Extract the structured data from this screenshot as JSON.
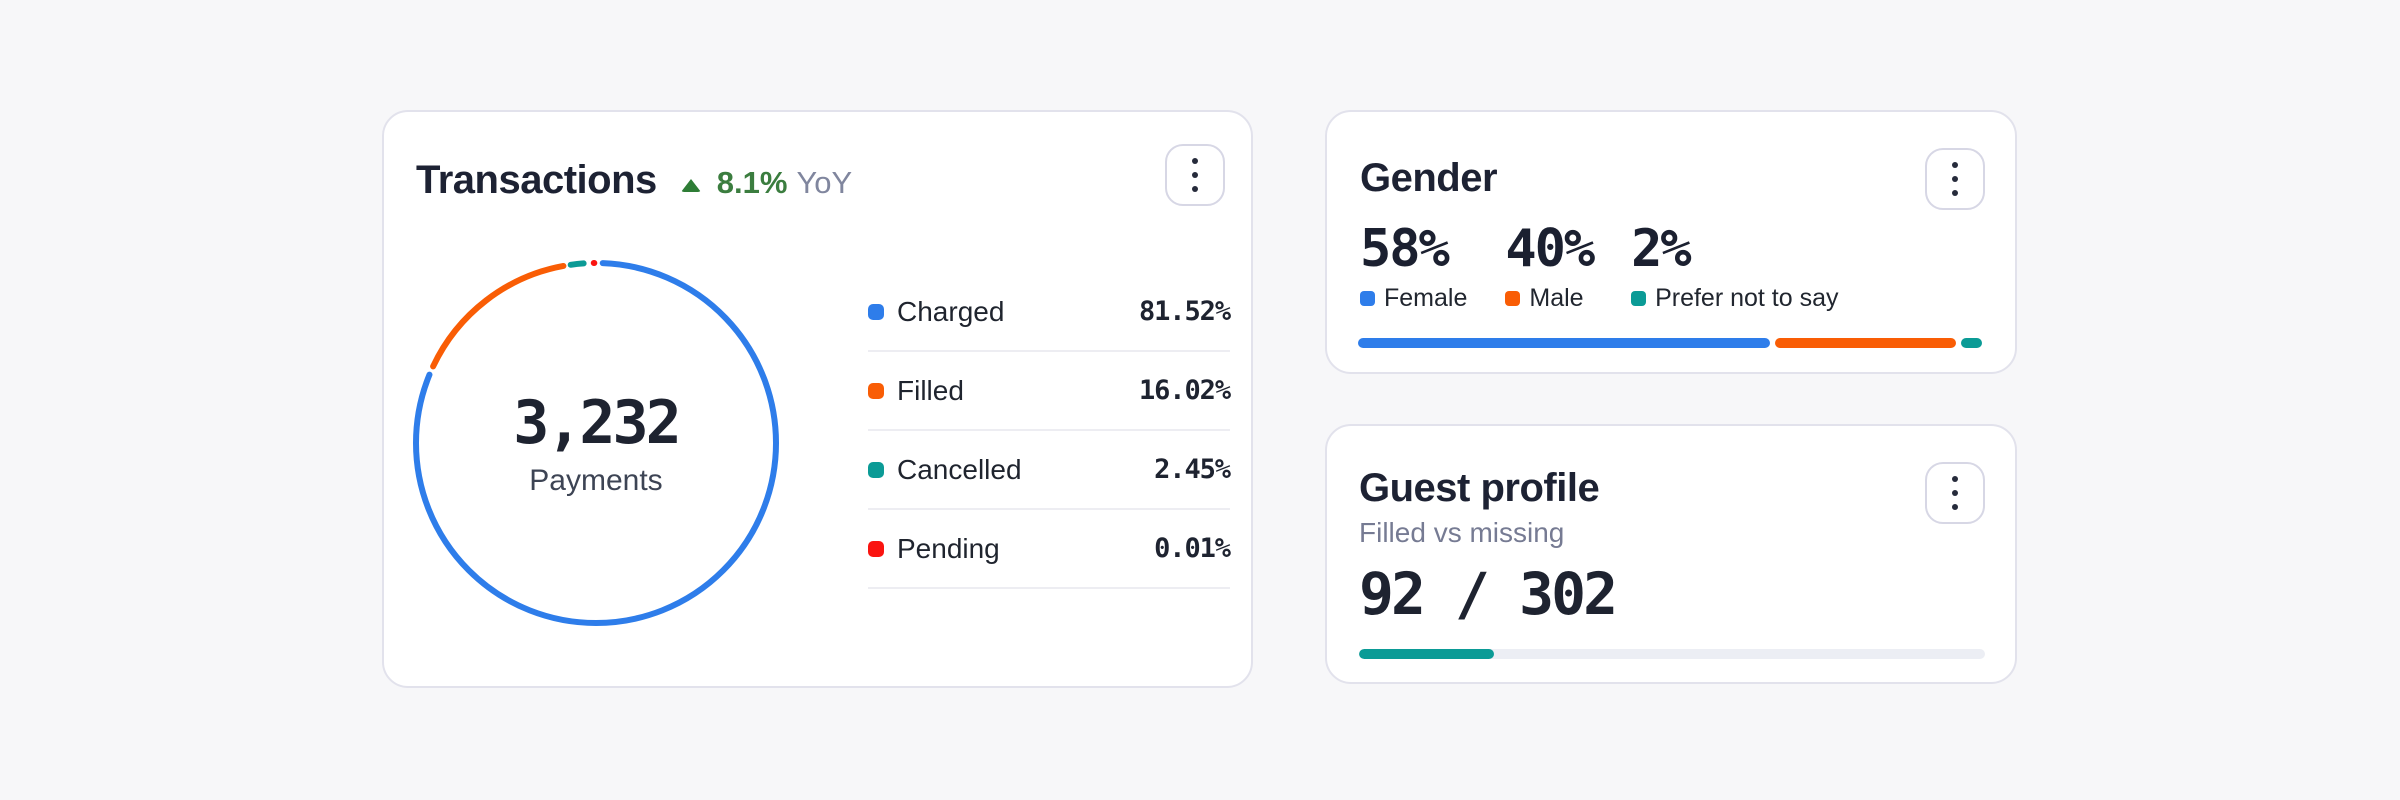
{
  "page": {
    "background_color": "#f7f7f9"
  },
  "transactions_card": {
    "title": "Transactions",
    "trend": {
      "arrow_icon": "up-triangle-icon",
      "arrow_color": "#2e7d36",
      "value": "8.1%",
      "value_color": "#3b7d3f",
      "suffix": "YoY",
      "suffix_color": "#80869e"
    },
    "center_value": "3,232",
    "center_label": "Payments",
    "donut": {
      "stroke_width": 6,
      "segments": [
        {
          "name": "charged",
          "color": "#2e7dea",
          "start_pct": 0.6,
          "length_pct": 80.6
        },
        {
          "name": "filled",
          "color": "#f95d05",
          "start_pct": 82.0,
          "length_pct": 15.1
        },
        {
          "name": "cancelled",
          "color": "#0b9b96",
          "start_pct": 97.75,
          "length_pct": 1.15
        },
        {
          "name": "pending",
          "color": "#fa1410",
          "start_pct": 99.8,
          "length_pct": 0.05
        }
      ]
    },
    "legend": [
      {
        "label": "Charged",
        "value": "81.52%",
        "color": "#2e7dea"
      },
      {
        "label": "Filled",
        "value": "16.02%",
        "color": "#f95d05"
      },
      {
        "label": "Cancelled",
        "value": "2.45%",
        "color": "#0b9b96"
      },
      {
        "label": "Pending",
        "value": "0.01%",
        "color": "#fa1410"
      }
    ]
  },
  "gender_card": {
    "title": "Gender",
    "groups": [
      {
        "value": "58%",
        "label": "Female",
        "color": "#2e7dea"
      },
      {
        "value": "40%",
        "label": "Male",
        "color": "#f95d05"
      },
      {
        "value": "2%",
        "label": "Prefer not to say",
        "color": "#0b9b96"
      }
    ],
    "bar_segments": [
      {
        "color": "#2e7dea",
        "width": "66.2%"
      },
      {
        "color": "#f95d05",
        "width": "29.1%"
      },
      {
        "color": "#0b9b96",
        "width": "3.3%"
      }
    ]
  },
  "guest_card": {
    "title": "Guest profile",
    "subtitle": "Filled vs missing",
    "value": "92 / 302",
    "progress": {
      "fill_color": "#0b9b96",
      "track_color": "#eceef4",
      "fill_width": "21.5%"
    }
  },
  "chart_data": [
    {
      "type": "pie",
      "variant": "donut",
      "title": "Transactions",
      "trend": "▲ 8.1% YoY",
      "center_value": 3232,
      "center_label": "Payments",
      "labels": [
        "Charged",
        "Filled",
        "Cancelled",
        "Pending"
      ],
      "values": [
        81.52,
        16.02,
        2.45,
        0.01
      ],
      "unit": "%",
      "colors": [
        "#2e7dea",
        "#f95d05",
        "#0b9b96",
        "#fa1410"
      ],
      "legend_position": "right"
    },
    {
      "type": "bar",
      "variant": "stacked-horizontal",
      "title": "Gender",
      "categories": [
        "Female",
        "Male",
        "Prefer not to say"
      ],
      "values": [
        58,
        40,
        2
      ],
      "unit": "%",
      "colors": [
        "#2e7dea",
        "#f95d05",
        "#0b9b96"
      ],
      "legend_position": "above"
    },
    {
      "type": "progress",
      "title": "Guest profile",
      "subtitle": "Filled vs missing",
      "value": 92,
      "max": 302,
      "color": "#0b9b96"
    }
  ]
}
